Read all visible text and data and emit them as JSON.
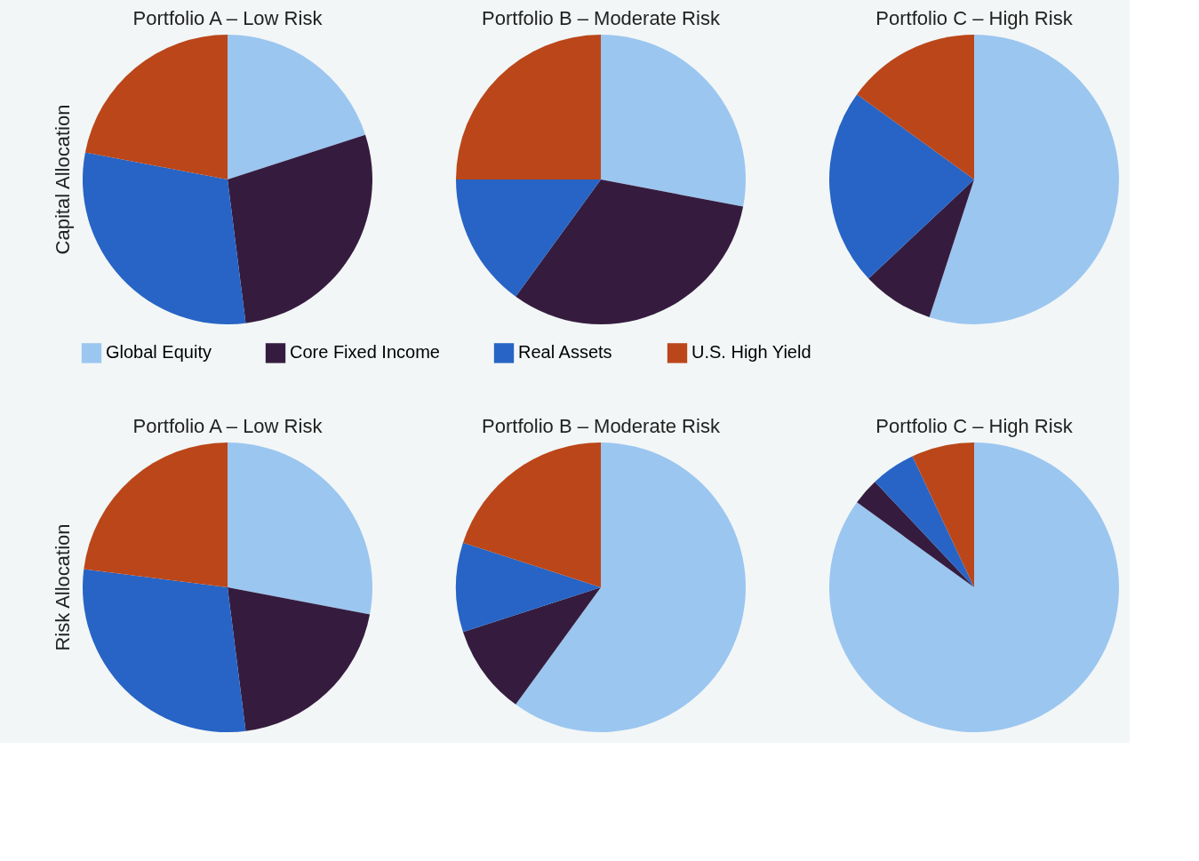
{
  "chart_data": [
    {
      "type": "pie",
      "title": "Portfolio A – Low Risk",
      "ylabel": "Capital Allocation",
      "categories": [
        "Global Equity",
        "Core Fixed Income",
        "Real Assets",
        "U.S. High Yield"
      ],
      "values": [
        20,
        28,
        30,
        22
      ],
      "colors": [
        "#9bc6f0",
        "#351c3f",
        "#2764c5",
        "#bb4619"
      ],
      "legend": "bottom"
    },
    {
      "type": "pie",
      "title": "Portfolio B – Moderate Risk",
      "categories": [
        null,
        null,
        null,
        null
      ],
      "values": [
        28,
        32,
        15,
        25
      ],
      "colors": [
        "#9bc6f0",
        "#351c3f",
        "#2764c5",
        "#bb4619"
      ]
    },
    {
      "type": "pie",
      "title": "Portfolio C – High Risk",
      "categories": [
        null,
        null,
        null,
        null
      ],
      "values": [
        55,
        8,
        22,
        15
      ],
      "colors": [
        "#9bc6f0",
        "#351c3f",
        "#2764c5",
        "#bb4619"
      ]
    },
    {
      "type": "pie",
      "title": "Portfolio A – Low Risk",
      "ylabel": "Risk Allocation",
      "categories": [
        null,
        null,
        null,
        null
      ],
      "values": [
        28,
        20,
        29,
        23
      ],
      "colors": [
        "#9bc6f0",
        "#351c3f",
        "#2764c5",
        "#bb4619"
      ]
    },
    {
      "type": "pie",
      "title": "Portfolio B – Moderate Risk",
      "categories": [
        null,
        null,
        null,
        null
      ],
      "values": [
        60,
        10,
        10,
        20
      ],
      "colors": [
        "#9bc6f0",
        "#351c3f",
        "#2764c5",
        "#bb4619"
      ]
    },
    {
      "type": "pie",
      "title": "Portfolio C – High Risk",
      "categories": [
        null,
        null,
        null,
        null
      ],
      "values": [
        85,
        3,
        5,
        7
      ],
      "colors": [
        "#9bc6f0",
        "#351c3f",
        "#2764c5",
        "#bb4619"
      ]
    }
  ]
}
